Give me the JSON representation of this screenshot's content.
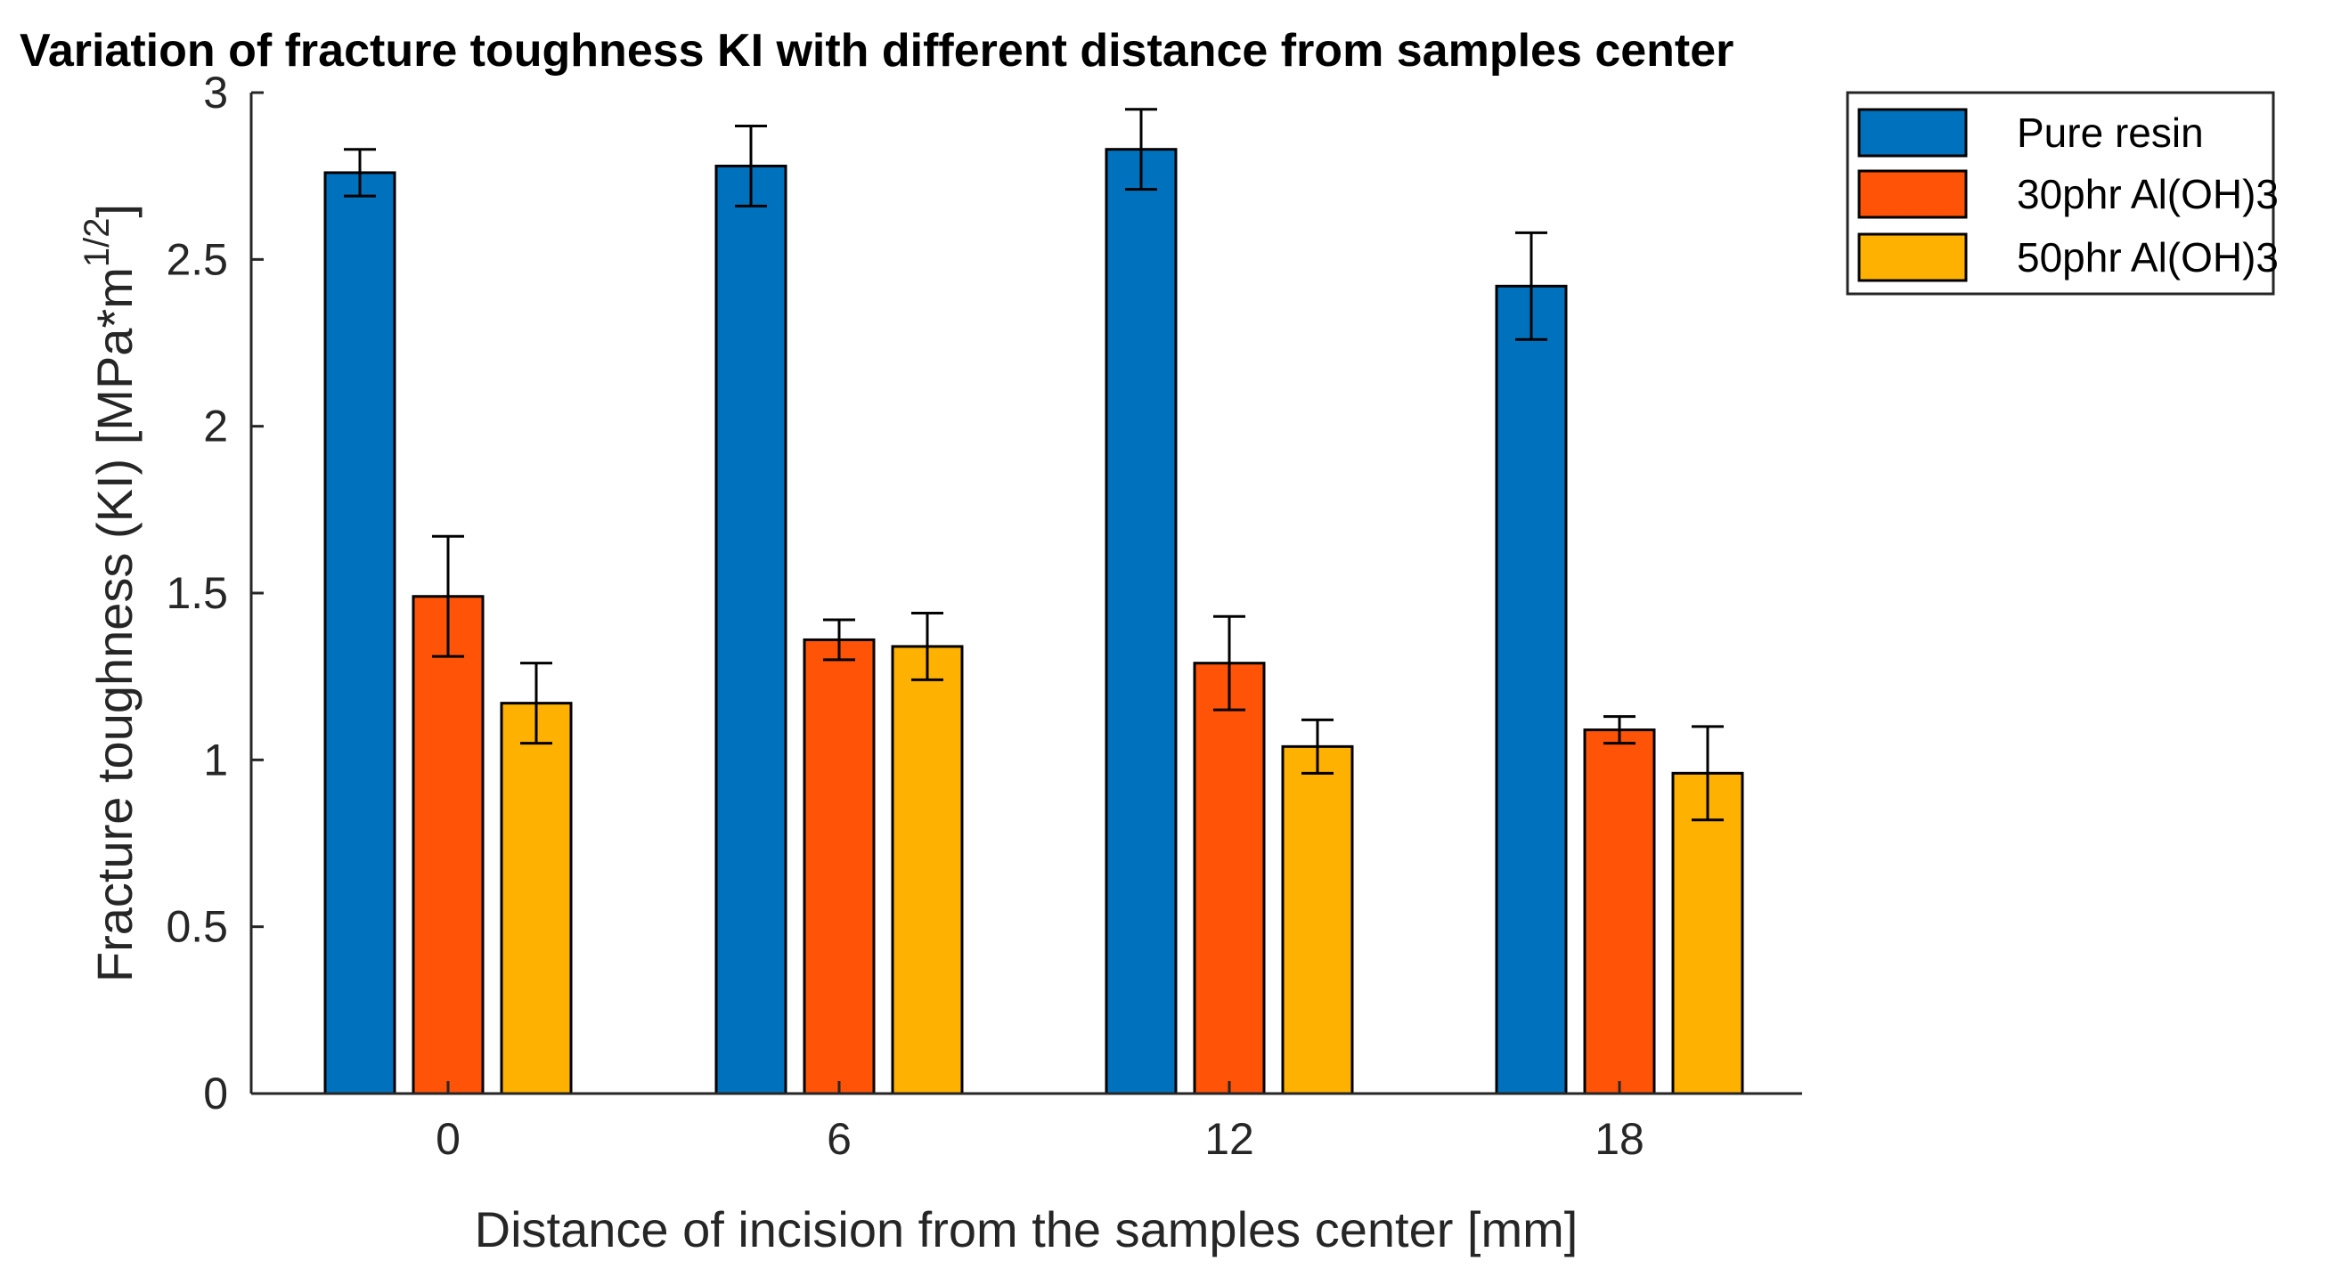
{
  "chart_data": {
    "type": "bar",
    "title": "Variation of fracture toughness KI with different distance from samples center",
    "xlabel": "Distance of incision from the samples center [mm]",
    "ylabel": "Fracture toughness (KI) [MPa*m",
    "ylabel_superscript": "1/2",
    "ylabel_suffix": "]",
    "categories": [
      "0",
      "6",
      "12",
      "18"
    ],
    "ylim": [
      0,
      3
    ],
    "yticks": [
      "0",
      "0.5",
      "1",
      "1.5",
      "2",
      "2.5",
      "3"
    ],
    "yticks_values": [
      0,
      0.5,
      1,
      1.5,
      2,
      2.5,
      3
    ],
    "grid": false,
    "legend_position": "top-right outside",
    "series": [
      {
        "name": "Pure resin",
        "color": "#0072BD",
        "values": [
          2.76,
          2.78,
          2.83,
          2.42
        ],
        "errors": [
          0.07,
          0.12,
          0.12,
          0.16
        ]
      },
      {
        "name": "30phr Al(OH)3",
        "color": "#FF5308",
        "values": [
          1.49,
          1.36,
          1.29,
          1.09
        ],
        "errors": [
          0.18,
          0.06,
          0.14,
          0.04
        ]
      },
      {
        "name": "50phr Al(OH)3",
        "color": "#FFB100",
        "values": [
          1.17,
          1.34,
          1.04,
          0.96
        ],
        "errors": [
          0.12,
          0.1,
          0.08,
          0.14
        ]
      }
    ]
  }
}
